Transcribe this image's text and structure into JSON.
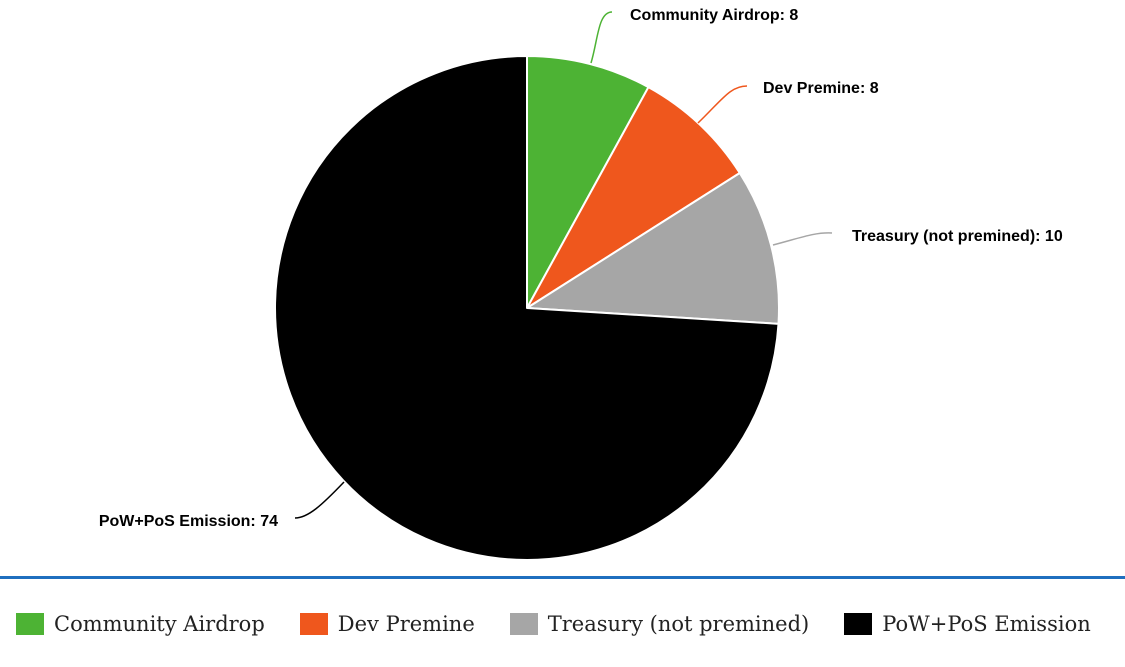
{
  "chart_data": {
    "type": "pie",
    "slices": [
      {
        "label": "Community Airdrop",
        "value": 8,
        "color": "#4db334",
        "data_label": "Community Airdrop: 8"
      },
      {
        "label": "Dev Premine",
        "value": 8,
        "color": "#ef571d",
        "data_label": "Dev Premine: 8"
      },
      {
        "label": "Treasury (not premined)",
        "value": 10,
        "color": "#a6a6a6",
        "data_label": "Treasury (not premined): 10"
      },
      {
        "label": "PoW+PoS Emission",
        "value": 74,
        "color": "#000000",
        "data_label": "PoW+PoS Emission: 74"
      }
    ],
    "legend_position": "bottom"
  },
  "accent_color": "#1f6fbf"
}
